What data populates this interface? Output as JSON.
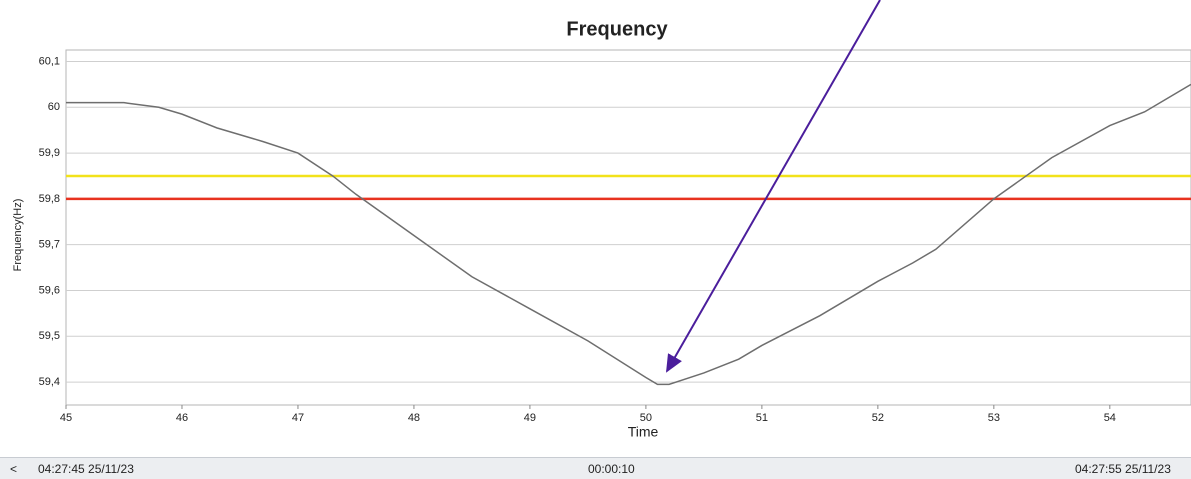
{
  "chart_data": {
    "type": "line",
    "title": "Frequency",
    "x_label": "Time",
    "y_label": "Frequency(Hz)",
    "x": [
      45,
      45.5,
      45.8,
      46,
      46.3,
      46.7,
      47,
      47.3,
      47.5,
      48,
      48.5,
      49,
      49.5,
      50,
      50.1,
      50.2,
      50.5,
      50.8,
      51,
      51.5,
      52,
      52.3,
      52.5,
      53,
      53.5,
      54,
      54.3,
      54.7
    ],
    "values": [
      60.01,
      60.01,
      60.0,
      59.985,
      59.955,
      59.925,
      59.9,
      59.85,
      59.81,
      59.72,
      59.63,
      59.56,
      59.49,
      59.41,
      59.395,
      59.395,
      59.42,
      59.45,
      59.48,
      59.545,
      59.62,
      59.66,
      59.69,
      59.8,
      59.89,
      59.96,
      59.99,
      60.05
    ],
    "color": "#6e6e6e",
    "xlim": [
      45,
      54.7
    ],
    "xticks": [
      45,
      46,
      47,
      48,
      49,
      50,
      51,
      52,
      53,
      54
    ],
    "ylim": [
      59.35,
      60.125
    ],
    "yticks": [
      {
        "value": 59.4,
        "label": "59,4"
      },
      {
        "value": 59.5,
        "label": "59,5"
      },
      {
        "value": 59.6,
        "label": "59,6"
      },
      {
        "value": 59.7,
        "label": "59,7"
      },
      {
        "value": 59.8,
        "label": "59,8"
      },
      {
        "value": 59.9,
        "label": "59,9"
      },
      60,
      {
        "value": 60.1,
        "label": "60,1"
      }
    ],
    "grid": true,
    "reference_lines": [
      {
        "value": 59.85,
        "color": "#f2e21a"
      },
      {
        "value": 59.8,
        "color": "#e8321f"
      }
    ]
  },
  "scrollbar": {
    "button": "<",
    "start": "04:27:45 25/11/23",
    "span": "00:00:10",
    "end": "04:27:55 25/11/23"
  }
}
